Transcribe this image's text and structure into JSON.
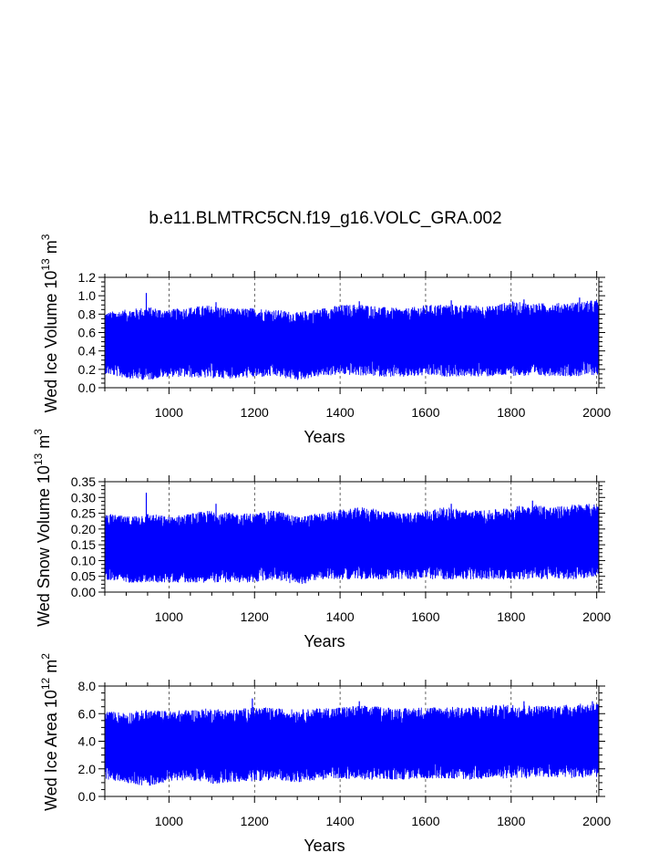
{
  "figure": {
    "title": "b.e11.BLMTRC5CN.f19_g16.VOLC_GRA.002"
  },
  "chart_data": [
    {
      "type": "line",
      "title": "b.e11.BLMTRC5CN.f19_g16.VOLC_GRA.002",
      "xlabel": "Years",
      "ylabel": {
        "text": "Wed Ice Volume 10",
        "exp": "13",
        "unit": " m",
        "unit_exp": "3"
      },
      "xlim": [
        850,
        2005
      ],
      "ylim": [
        0.0,
        1.2
      ],
      "x_ticks": [
        1000,
        1200,
        1400,
        1600,
        1800,
        2000
      ],
      "y_ticks": [
        "0.0",
        "0.2",
        "0.4",
        "0.6",
        "0.8",
        "1.0",
        "1.2"
      ],
      "y_tick_values": [
        0.0,
        0.2,
        0.4,
        0.6,
        0.8,
        1.0,
        1.2
      ],
      "grid": "vertical dashed at x ticks",
      "color": "#0000ff",
      "series": [
        {
          "x": [
            850,
            900,
            950,
            1000,
            1050,
            1100,
            1150,
            1200,
            1250,
            1300,
            1350,
            1400,
            1450,
            1500,
            1550,
            1600,
            1650,
            1700,
            1750,
            1800,
            1850,
            1900,
            1950,
            2005
          ],
          "min": [
            0.15,
            0.1,
            0.08,
            0.12,
            0.11,
            0.1,
            0.1,
            0.11,
            0.12,
            0.08,
            0.12,
            0.14,
            0.13,
            0.12,
            0.11,
            0.13,
            0.12,
            0.12,
            0.12,
            0.13,
            0.12,
            0.13,
            0.12,
            0.14
          ],
          "max": [
            0.82,
            0.85,
            0.88,
            0.85,
            0.88,
            0.9,
            0.86,
            0.87,
            0.85,
            0.82,
            0.86,
            0.9,
            0.91,
            0.88,
            0.86,
            0.9,
            0.91,
            0.9,
            0.89,
            0.94,
            0.92,
            0.92,
            0.93,
            0.96
          ],
          "spikes": [
            [
              947,
              1.03
            ],
            [
              1110,
              0.93
            ],
            [
              1445,
              0.94
            ],
            [
              1660,
              0.95
            ],
            [
              1830,
              0.96
            ],
            [
              1960,
              0.98
            ]
          ]
        }
      ]
    },
    {
      "type": "line",
      "title": "",
      "xlabel": "Years",
      "ylabel": {
        "text": "Wed Snow Volume 10",
        "exp": "13",
        "unit": " m",
        "unit_exp": "3"
      },
      "xlim": [
        850,
        2005
      ],
      "ylim": [
        0.0,
        0.35
      ],
      "x_ticks": [
        1000,
        1200,
        1400,
        1600,
        1800,
        2000
      ],
      "y_ticks": [
        "0.00",
        "0.05",
        "0.10",
        "0.15",
        "0.20",
        "0.25",
        "0.30",
        "0.35"
      ],
      "y_tick_values": [
        0.0,
        0.05,
        0.1,
        0.15,
        0.2,
        0.25,
        0.3,
        0.35
      ],
      "grid": "vertical dashed at x ticks",
      "color": "#0000ff",
      "series": [
        {
          "x": [
            850,
            900,
            950,
            1000,
            1050,
            1100,
            1150,
            1200,
            1250,
            1300,
            1350,
            1400,
            1450,
            1500,
            1550,
            1600,
            1650,
            1700,
            1750,
            1800,
            1850,
            1900,
            1950,
            2005
          ],
          "min": [
            0.04,
            0.03,
            0.03,
            0.03,
            0.03,
            0.03,
            0.03,
            0.03,
            0.04,
            0.02,
            0.04,
            0.04,
            0.04,
            0.04,
            0.04,
            0.04,
            0.04,
            0.04,
            0.04,
            0.04,
            0.04,
            0.04,
            0.04,
            0.05
          ],
          "max": [
            0.25,
            0.24,
            0.25,
            0.24,
            0.25,
            0.26,
            0.25,
            0.25,
            0.26,
            0.24,
            0.25,
            0.26,
            0.27,
            0.26,
            0.25,
            0.26,
            0.27,
            0.26,
            0.26,
            0.27,
            0.28,
            0.27,
            0.28,
            0.28
          ],
          "spikes": [
            [
              947,
              0.315
            ],
            [
              1110,
              0.28
            ],
            [
              1660,
              0.28
            ],
            [
              1850,
              0.29
            ]
          ]
        }
      ]
    },
    {
      "type": "line",
      "title": "",
      "xlabel": "Years",
      "ylabel": {
        "text": "Wed Ice Area 10",
        "exp": "12",
        "unit": " m",
        "unit_exp": "2"
      },
      "xlim": [
        850,
        2005
      ],
      "ylim": [
        0.0,
        8.0
      ],
      "x_ticks": [
        1000,
        1200,
        1400,
        1600,
        1800,
        2000
      ],
      "y_ticks": [
        "0.0",
        "2.0",
        "4.0",
        "6.0",
        "8.0"
      ],
      "y_tick_values": [
        0.0,
        2.0,
        4.0,
        6.0,
        8.0
      ],
      "grid": "vertical dashed at x ticks",
      "color": "#0000ff",
      "series": [
        {
          "x": [
            850,
            900,
            950,
            1000,
            1050,
            1100,
            1150,
            1200,
            1250,
            1300,
            1350,
            1400,
            1450,
            1500,
            1550,
            1600,
            1650,
            1700,
            1750,
            1800,
            1850,
            1900,
            1950,
            2005
          ],
          "min": [
            1.2,
            1.0,
            0.7,
            1.1,
            1.2,
            0.9,
            1.0,
            1.1,
            1.2,
            1.0,
            1.2,
            1.3,
            1.2,
            1.2,
            1.2,
            1.3,
            1.3,
            1.2,
            1.3,
            1.3,
            1.3,
            1.4,
            1.3,
            1.4
          ],
          "max": [
            6.2,
            6.1,
            6.3,
            6.2,
            6.3,
            6.4,
            6.3,
            6.5,
            6.4,
            6.3,
            6.4,
            6.5,
            6.6,
            6.5,
            6.4,
            6.5,
            6.5,
            6.5,
            6.6,
            6.7,
            6.6,
            6.6,
            6.7,
            6.8
          ],
          "spikes": [
            [
              1195,
              7.1
            ],
            [
              1445,
              6.9
            ],
            [
              1830,
              6.9
            ],
            [
              1990,
              6.9
            ]
          ]
        }
      ]
    }
  ]
}
